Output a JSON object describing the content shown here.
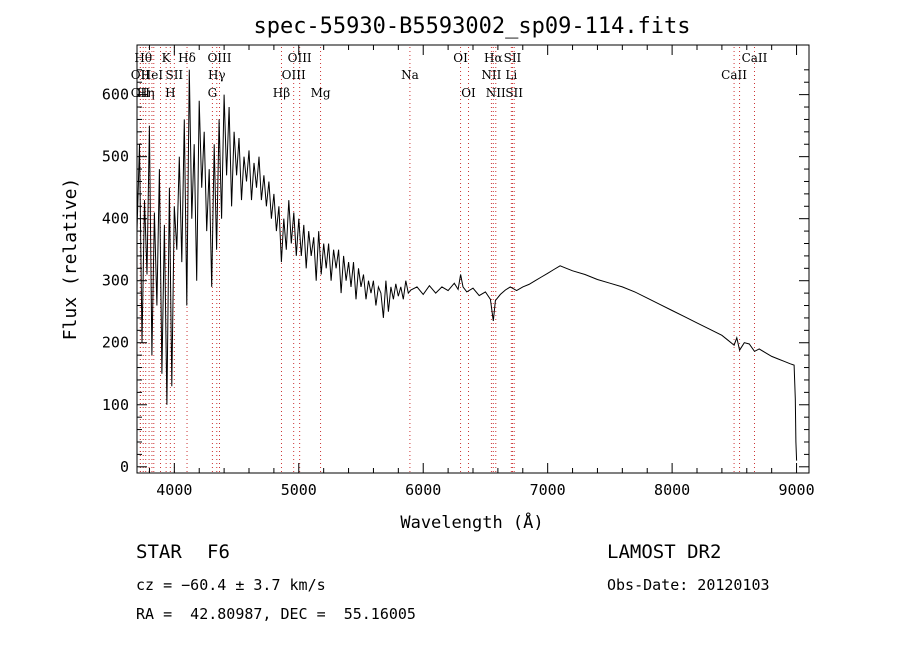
{
  "chart_data": {
    "type": "line",
    "title": "spec-55930-B5593002_sp09-114.fits",
    "xlabel": "Wavelength (Å)",
    "ylabel": "Flux (relative)",
    "xlim": [
      3700,
      9100
    ],
    "ylim": [
      -10,
      680
    ],
    "xticks": [
      4000,
      5000,
      6000,
      7000,
      8000,
      9000
    ],
    "yticks": [
      0,
      100,
      200,
      300,
      400,
      500,
      600
    ],
    "grid": false,
    "series": [
      {
        "x": [
          3700,
          3720,
          3740,
          3760,
          3780,
          3800,
          3820,
          3840,
          3860,
          3880,
          3900,
          3920,
          3940,
          3960,
          3980,
          4000,
          4020,
          4040,
          4060,
          4080,
          4100,
          4120,
          4140,
          4160,
          4180,
          4200,
          4220,
          4240,
          4260,
          4280,
          4300,
          4320,
          4340,
          4360,
          4380,
          4400,
          4420,
          4440,
          4460,
          4480,
          4500,
          4520,
          4540,
          4560,
          4580,
          4600,
          4620,
          4640,
          4660,
          4680,
          4700,
          4720,
          4740,
          4760,
          4780,
          4800,
          4820,
          4840,
          4860,
          4880,
          4900,
          4920,
          4940,
          4960,
          4980,
          5000,
          5020,
          5040,
          5060,
          5080,
          5100,
          5120,
          5140,
          5160,
          5180,
          5200,
          5220,
          5240,
          5260,
          5280,
          5300,
          5320,
          5340,
          5360,
          5380,
          5400,
          5420,
          5440,
          5460,
          5480,
          5500,
          5520,
          5540,
          5560,
          5580,
          5600,
          5620,
          5640,
          5660,
          5680,
          5700,
          5720,
          5740,
          5760,
          5780,
          5800,
          5820,
          5840,
          5860,
          5880,
          5900,
          5950,
          6000,
          6050,
          6100,
          6150,
          6200,
          6250,
          6280,
          6300,
          6320,
          6350,
          6400,
          6450,
          6500,
          6540,
          6563,
          6580,
          6620,
          6660,
          6700,
          6750,
          6800,
          6850,
          6900,
          6950,
          7000,
          7050,
          7100,
          7150,
          7200,
          7300,
          7400,
          7500,
          7600,
          7700,
          7800,
          7900,
          8000,
          8100,
          8200,
          8300,
          8400,
          8450,
          8498,
          8520,
          8542,
          8580,
          8620,
          8662,
          8700,
          8750,
          8800,
          8850,
          8900,
          8950,
          8980,
          8990,
          8995,
          9000
        ],
        "y": [
          380,
          520,
          200,
          430,
          310,
          550,
          180,
          410,
          260,
          480,
          150,
          390,
          100,
          450,
          130,
          420,
          350,
          500,
          330,
          560,
          260,
          640,
          400,
          520,
          300,
          590,
          450,
          540,
          380,
          480,
          290,
          520,
          350,
          560,
          400,
          600,
          470,
          580,
          420,
          540,
          470,
          530,
          430,
          500,
          460,
          510,
          430,
          490,
          450,
          500,
          430,
          470,
          420,
          460,
          400,
          440,
          380,
          420,
          330,
          400,
          350,
          430,
          360,
          410,
          340,
          400,
          340,
          390,
          320,
          380,
          340,
          370,
          300,
          380,
          310,
          360,
          320,
          360,
          300,
          350,
          320,
          350,
          280,
          340,
          300,
          330,
          290,
          330,
          270,
          320,
          290,
          310,
          270,
          300,
          280,
          300,
          260,
          290,
          280,
          240,
          300,
          250,
          290,
          270,
          295,
          275,
          290,
          270,
          300,
          280,
          285,
          290,
          278,
          292,
          280,
          290,
          284,
          296,
          286,
          310,
          290,
          282,
          288,
          276,
          282,
          270,
          235,
          268,
          278,
          285,
          290,
          284,
          290,
          294,
          300,
          306,
          312,
          318,
          324,
          320,
          316,
          310,
          302,
          296,
          290,
          282,
          272,
          262,
          252,
          242,
          232,
          222,
          212,
          204,
          196,
          208,
          188,
          200,
          198,
          186,
          190,
          184,
          178,
          174,
          170,
          166,
          164,
          110,
          40,
          10
        ]
      }
    ],
    "lines": [
      {
        "x": 3750,
        "label": "Hθ",
        "row": 1
      },
      {
        "x": 3727,
        "label": "OII",
        "row": 2
      },
      {
        "x": 3727,
        "label": "OII",
        "row": 3
      },
      {
        "x": 3770,
        "label": "Hη",
        "row": 3
      },
      {
        "x": 3797,
        "label": "",
        "row": 0
      },
      {
        "x": 3820,
        "label": "HeI",
        "row": 2
      },
      {
        "x": 3835,
        "label": "",
        "row": 0
      },
      {
        "x": 3889,
        "label": "",
        "row": 0
      },
      {
        "x": 3934,
        "label": "K",
        "row": 1
      },
      {
        "x": 3968,
        "label": "H",
        "row": 3
      },
      {
        "x": 4000,
        "label": "SII",
        "row": 2
      },
      {
        "x": 4102,
        "label": "Hδ",
        "row": 1
      },
      {
        "x": 4306,
        "label": "G",
        "row": 3
      },
      {
        "x": 4341,
        "label": "Hγ",
        "row": 2
      },
      {
        "x": 4363,
        "label": "OIII",
        "row": 1
      },
      {
        "x": 4861,
        "label": "Hβ",
        "row": 3
      },
      {
        "x": 4959,
        "label": "OIII",
        "row": 2
      },
      {
        "x": 5007,
        "label": "OIII",
        "row": 1
      },
      {
        "x": 5175,
        "label": "Mg",
        "row": 3
      },
      {
        "x": 5893,
        "label": "Na",
        "row": 2
      },
      {
        "x": 6300,
        "label": "OI",
        "row": 1
      },
      {
        "x": 6364,
        "label": "OI",
        "row": 3
      },
      {
        "x": 6548,
        "label": "NII",
        "row": 2
      },
      {
        "x": 6563,
        "label": "Hα",
        "row": 1
      },
      {
        "x": 6583,
        "label": "NII",
        "row": 3
      },
      {
        "x": 6708,
        "label": "Li",
        "row": 2
      },
      {
        "x": 6717,
        "label": "SII",
        "row": 1
      },
      {
        "x": 6731,
        "label": "SII",
        "row": 3
      },
      {
        "x": 8498,
        "label": "CaII",
        "row": 2
      },
      {
        "x": 8542,
        "label": "",
        "row": 0
      },
      {
        "x": 8662,
        "label": "CaII",
        "row": 1
      }
    ]
  },
  "info": {
    "object_class": "STAR",
    "subclass": "F6",
    "survey": "LAMOST DR2",
    "cz": "cz = −60.4 ± 3.7 km/s",
    "obs_date": "Obs-Date: 20120103",
    "coords": "RA =  42.80987, DEC =  55.16005"
  }
}
